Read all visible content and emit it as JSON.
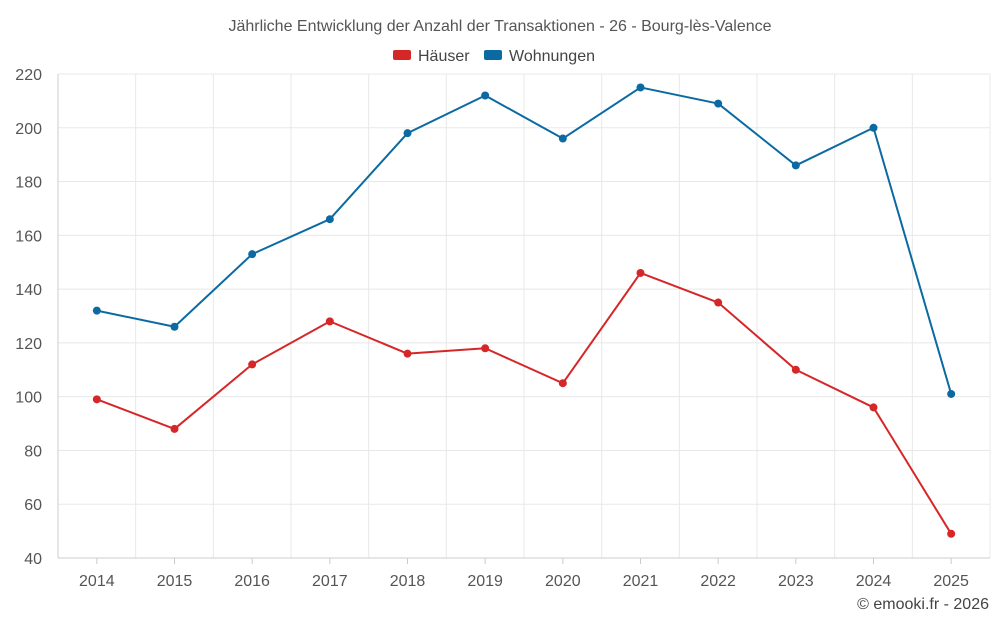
{
  "chart_data": {
    "type": "line",
    "title": "Jährliche Entwicklung der Anzahl der Transaktionen - 26 - Bourg-lès-Valence",
    "categories": [
      "2014",
      "2015",
      "2016",
      "2017",
      "2018",
      "2019",
      "2020",
      "2021",
      "2022",
      "2023",
      "2024",
      "2025"
    ],
    "series": [
      {
        "name": "Häuser",
        "color": "#d62728",
        "values": [
          99,
          88,
          112,
          128,
          116,
          118,
          105,
          146,
          135,
          110,
          96,
          49
        ]
      },
      {
        "name": "Wohnungen",
        "color": "#0b6aa2",
        "values": [
          132,
          126,
          153,
          166,
          198,
          212,
          196,
          215,
          209,
          186,
          200,
          101
        ]
      }
    ],
    "ylim": [
      40,
      220
    ],
    "yticks": [
      40,
      60,
      80,
      100,
      120,
      140,
      160,
      180,
      200,
      220
    ],
    "xlabel": "",
    "ylabel": "",
    "grid": true,
    "legend_position": "top-center"
  },
  "credit": "© emooki.fr - 2026"
}
